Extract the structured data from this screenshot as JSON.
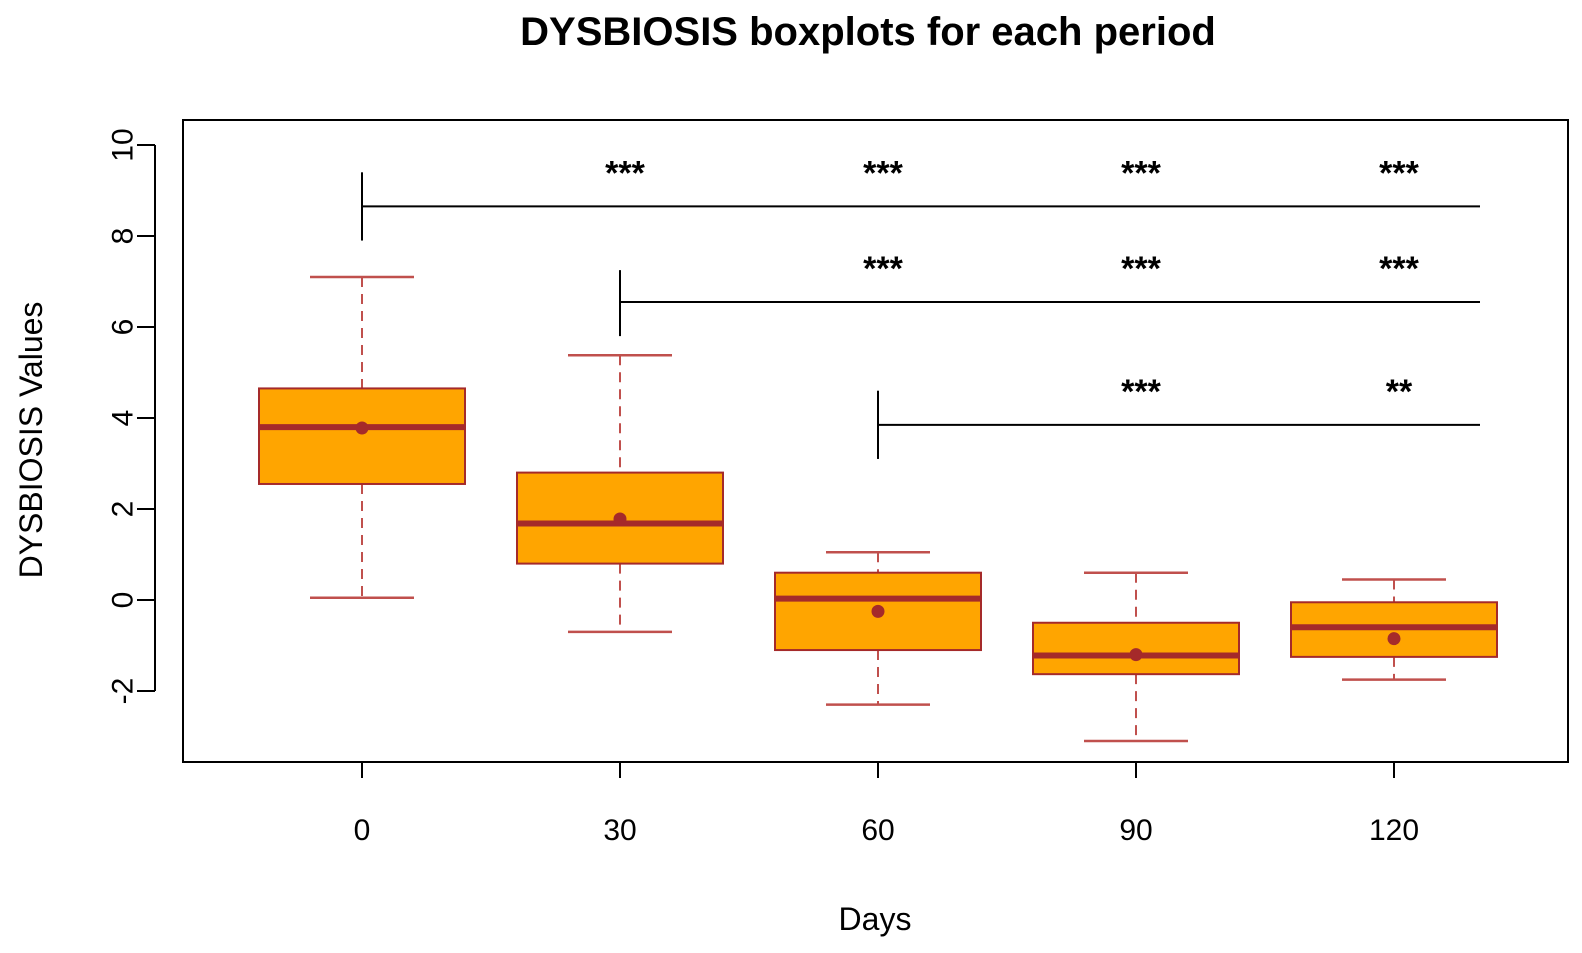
{
  "chart_data": {
    "type": "boxplot",
    "title": "DYSBIOSIS boxplots for each period",
    "xlabel": "Days",
    "ylabel": "DYSBIOSIS Values",
    "ylim": [
      -3.5,
      10.6
    ],
    "yticks": [
      -2,
      0,
      2,
      4,
      6,
      8,
      10
    ],
    "categories": [
      "0",
      "30",
      "60",
      "90",
      "120"
    ],
    "boxes": [
      {
        "label": "0",
        "whisker_low": 0.05,
        "q1": 2.55,
        "median": 3.8,
        "q3": 4.65,
        "whisker_high": 7.1,
        "mean": 3.78
      },
      {
        "label": "30",
        "whisker_low": -0.7,
        "q1": 0.8,
        "median": 1.68,
        "q3": 2.8,
        "whisker_high": 5.38,
        "mean": 1.78
      },
      {
        "label": "60",
        "whisker_low": -2.3,
        "q1": -1.1,
        "median": 0.03,
        "q3": 0.6,
        "whisker_high": 1.05,
        "mean": -0.25
      },
      {
        "label": "90",
        "whisker_low": -3.1,
        "q1": -1.63,
        "median": -1.22,
        "q3": -0.5,
        "whisker_high": 0.6,
        "mean": -1.2
      },
      {
        "label": "120",
        "whisker_low": -1.75,
        "q1": -1.25,
        "median": -0.6,
        "q3": -0.05,
        "whisker_high": 0.45,
        "mean": -0.85
      }
    ],
    "significance": [
      {
        "reference": "0",
        "y": 8.65,
        "vspan": [
          7.9,
          9.4
        ],
        "marks": [
          {
            "x": "30",
            "label": "***"
          },
          {
            "x": "60",
            "label": "***"
          },
          {
            "x": "90",
            "label": "***"
          },
          {
            "x": "120",
            "label": "***"
          }
        ]
      },
      {
        "reference": "30",
        "y": 6.55,
        "vspan": [
          5.8,
          7.25
        ],
        "marks": [
          {
            "x": "60",
            "label": "***"
          },
          {
            "x": "90",
            "label": "***"
          },
          {
            "x": "120",
            "label": "***"
          }
        ]
      },
      {
        "reference": "60",
        "y": 3.85,
        "vspan": [
          3.1,
          4.6
        ],
        "marks": [
          {
            "x": "90",
            "label": "***"
          },
          {
            "x": "120",
            "label": "**"
          }
        ]
      }
    ],
    "colors": {
      "box_fill": "#FFA500",
      "box_border": "#A52A2A",
      "median": "#A52A2A",
      "mean_dot": "#A52A2A",
      "whisker": "#C0504D",
      "axis": "#000000"
    }
  }
}
